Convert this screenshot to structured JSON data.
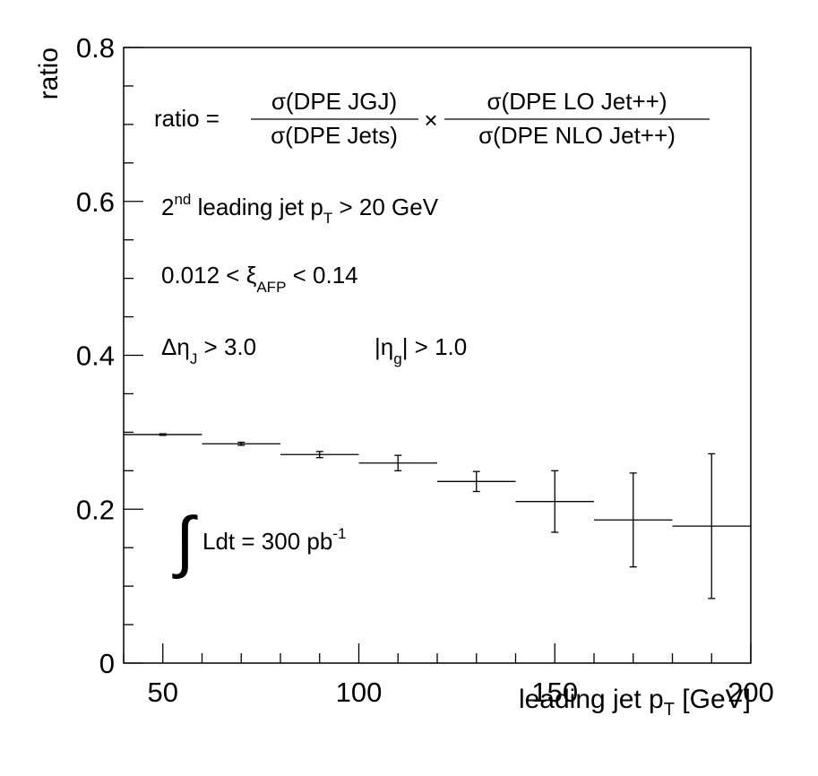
{
  "chart_data": {
    "type": "errorbar",
    "y_label": "ratio",
    "x_label": {
      "main": "leading jet p",
      "sub": "T",
      "rest": " [GeV]"
    },
    "formula": {
      "lhs": "ratio =",
      "num1": "σ(DPE JGJ)",
      "den1": "σ(DPE Jets)",
      "times": "×",
      "num2": "σ(DPE LO Jet++)",
      "den2": "σ(DPE NLO Jet++)"
    },
    "annotations": {
      "cut_pt": [
        "2",
        "nd",
        " leading jet p",
        "T",
        " > 20 GeV"
      ],
      "xi": [
        "0.012 < ξ",
        "AFP",
        " < 0.14"
      ],
      "deta": [
        "Δη",
        "J",
        " > 3.0"
      ],
      "etag": [
        "|η",
        "g",
        "| > 1.0"
      ],
      "lumi": [
        "∫",
        "Ldt = 300 pb",
        "-1"
      ]
    },
    "x": [
      50,
      70,
      90,
      110,
      130,
      150,
      170,
      190
    ],
    "xerr": [
      10,
      10,
      10,
      10,
      10,
      10,
      10,
      10
    ],
    "values": [
      0.297,
      0.285,
      0.271,
      0.26,
      0.236,
      0.21,
      0.186,
      0.178
    ],
    "errors": [
      0.001,
      0.002,
      0.004,
      0.01,
      0.013,
      0.04,
      0.061,
      0.094
    ],
    "color": "#000000",
    "xlim": [
      40,
      200
    ],
    "ylim": [
      0,
      0.8
    ],
    "xticks": [
      50,
      100,
      150,
      200
    ],
    "yticks": [
      0,
      0.2,
      0.4,
      0.6,
      0.8
    ],
    "xminorticks": [
      40,
      60,
      70,
      80,
      90,
      110,
      120,
      130,
      140,
      160,
      170,
      180,
      190
    ],
    "yminorticks": [
      0.05,
      0.1,
      0.15,
      0.25,
      0.3,
      0.35,
      0.45,
      0.5,
      0.55,
      0.65,
      0.7,
      0.75
    ]
  }
}
